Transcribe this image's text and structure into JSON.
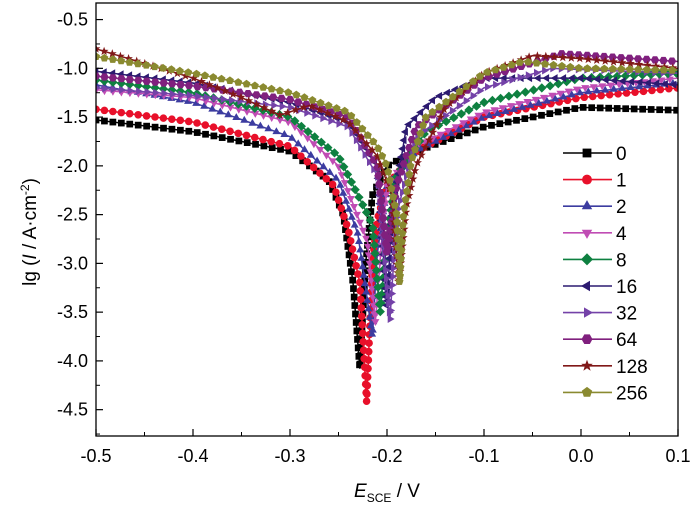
{
  "chart_data": {
    "type": "line",
    "title": "",
    "xlabel": {
      "main": "E",
      "sub": "SCE",
      "unit": " / V"
    },
    "ylabel": {
      "prefix": "lg (",
      "var": "I",
      "unit": " / A·cm",
      "sup": "-2",
      "suffix": ")"
    },
    "xlim": [
      -0.5,
      0.1
    ],
    "ylim": [
      -4.77,
      -0.33
    ],
    "xticks": [
      -0.5,
      -0.4,
      -0.3,
      -0.2,
      -0.1,
      0.0,
      0.1
    ],
    "xtick_labels": [
      "-0.5",
      "-0.4",
      "-0.3",
      "-0.2",
      "-0.1",
      "0.0",
      "0.1"
    ],
    "yticks": [
      -0.5,
      -1.0,
      -1.5,
      -2.0,
      -2.5,
      -3.0,
      -3.5,
      -4.0,
      -4.5
    ],
    "ytick_labels": [
      "-0.5",
      "-1.0",
      "-1.5",
      "-2.0",
      "-2.5",
      "-3.0",
      "-3.5",
      "-4.0",
      "-4.5"
    ],
    "grid": false,
    "legend_position": "right",
    "series": [
      {
        "name": "0",
        "color": "#000000",
        "marker": "square",
        "points": [
          [
            -0.5,
            -1.53
          ],
          [
            -0.4,
            -1.65
          ],
          [
            -0.3,
            -1.85
          ],
          [
            -0.26,
            -2.15
          ],
          [
            -0.245,
            -2.5
          ],
          [
            -0.235,
            -3.2
          ],
          [
            -0.228,
            -4.08
          ],
          [
            -0.222,
            -3.0
          ],
          [
            -0.215,
            -2.3
          ],
          [
            -0.2,
            -2.0
          ],
          [
            -0.17,
            -1.85
          ],
          [
            -0.1,
            -1.6
          ],
          [
            0.0,
            -1.4
          ],
          [
            0.1,
            -1.43
          ]
        ]
      },
      {
        "name": "1",
        "color": "#e8102a",
        "marker": "circle",
        "points": [
          [
            -0.5,
            -1.42
          ],
          [
            -0.4,
            -1.55
          ],
          [
            -0.3,
            -1.8
          ],
          [
            -0.255,
            -2.2
          ],
          [
            -0.24,
            -2.65
          ],
          [
            -0.228,
            -3.2
          ],
          [
            -0.221,
            -4.42
          ],
          [
            -0.215,
            -3.0
          ],
          [
            -0.21,
            -2.55
          ],
          [
            -0.2,
            -2.2
          ],
          [
            -0.17,
            -1.85
          ],
          [
            -0.1,
            -1.5
          ],
          [
            0.0,
            -1.3
          ],
          [
            0.1,
            -1.2
          ]
        ]
      },
      {
        "name": "2",
        "color": "#3c3ca0",
        "marker": "triangle-up",
        "points": [
          [
            -0.5,
            -1.17
          ],
          [
            -0.4,
            -1.35
          ],
          [
            -0.3,
            -1.7
          ],
          [
            -0.25,
            -2.15
          ],
          [
            -0.23,
            -2.7
          ],
          [
            -0.215,
            -3.75
          ],
          [
            -0.21,
            -2.9
          ],
          [
            -0.2,
            -2.2
          ],
          [
            -0.17,
            -1.85
          ],
          [
            -0.1,
            -1.5
          ],
          [
            0.0,
            -1.25
          ],
          [
            0.1,
            -1.15
          ]
        ]
      },
      {
        "name": "4",
        "color": "#c04cb4",
        "marker": "triangle-down",
        "points": [
          [
            -0.5,
            -1.22
          ],
          [
            -0.4,
            -1.3
          ],
          [
            -0.3,
            -1.55
          ],
          [
            -0.25,
            -2.0
          ],
          [
            -0.22,
            -2.78
          ],
          [
            -0.212,
            -3.6
          ],
          [
            -0.205,
            -2.7
          ],
          [
            -0.2,
            -2.2
          ],
          [
            -0.17,
            -1.8
          ],
          [
            -0.1,
            -1.45
          ],
          [
            0.0,
            -1.2
          ],
          [
            0.1,
            -1.1
          ]
        ]
      },
      {
        "name": "8",
        "color": "#0e8040",
        "marker": "diamond",
        "points": [
          [
            -0.5,
            -1.12
          ],
          [
            -0.4,
            -1.25
          ],
          [
            -0.3,
            -1.5
          ],
          [
            -0.25,
            -1.9
          ],
          [
            -0.215,
            -2.6
          ],
          [
            -0.207,
            -3.5
          ],
          [
            -0.2,
            -2.7
          ],
          [
            -0.19,
            -2.1
          ],
          [
            -0.16,
            -1.65
          ],
          [
            -0.1,
            -1.35
          ],
          [
            0.0,
            -1.1
          ],
          [
            0.1,
            -1.05
          ]
        ]
      },
      {
        "name": "16",
        "color": "#2c1a70",
        "marker": "triangle-left",
        "points": [
          [
            -0.5,
            -1.03
          ],
          [
            -0.4,
            -1.15
          ],
          [
            -0.3,
            -1.35
          ],
          [
            -0.24,
            -1.55
          ],
          [
            -0.21,
            -2.0
          ],
          [
            -0.2,
            -3.45
          ],
          [
            -0.195,
            -2.5
          ],
          [
            -0.18,
            -1.6
          ],
          [
            -0.15,
            -1.3
          ],
          [
            -0.1,
            -1.1
          ],
          [
            0.0,
            -1.1
          ],
          [
            0.1,
            -1.17
          ]
        ]
      },
      {
        "name": "32",
        "color": "#7442a8",
        "marker": "triangle-right",
        "points": [
          [
            -0.5,
            -1.2
          ],
          [
            -0.4,
            -1.28
          ],
          [
            -0.3,
            -1.4
          ],
          [
            -0.24,
            -1.6
          ],
          [
            -0.21,
            -2.1
          ],
          [
            -0.197,
            -3.58
          ],
          [
            -0.19,
            -2.5
          ],
          [
            -0.17,
            -1.7
          ],
          [
            -0.1,
            -1.2
          ],
          [
            -0.03,
            -1.0
          ],
          [
            0.1,
            -1.05
          ]
        ]
      },
      {
        "name": "64",
        "color": "#80207e",
        "marker": "hexagon",
        "points": [
          [
            -0.5,
            -1.08
          ],
          [
            -0.4,
            -1.18
          ],
          [
            -0.3,
            -1.32
          ],
          [
            -0.24,
            -1.5
          ],
          [
            -0.21,
            -2.0
          ],
          [
            -0.2,
            -2.9
          ],
          [
            -0.19,
            -2.2
          ],
          [
            -0.17,
            -1.6
          ],
          [
            -0.1,
            -1.1
          ],
          [
            -0.02,
            -0.85
          ],
          [
            0.1,
            -0.93
          ]
        ]
      },
      {
        "name": "128",
        "color": "#801818",
        "marker": "star",
        "points": [
          [
            -0.5,
            -0.8
          ],
          [
            -0.4,
            -1.1
          ],
          [
            -0.35,
            -1.3
          ],
          [
            -0.31,
            -1.48
          ],
          [
            -0.28,
            -1.38
          ],
          [
            -0.24,
            -1.55
          ],
          [
            -0.21,
            -1.9
          ],
          [
            -0.195,
            -2.3
          ],
          [
            -0.188,
            -3.22
          ],
          [
            -0.18,
            -2.42
          ],
          [
            -0.17,
            -2.0
          ],
          [
            -0.14,
            -1.4
          ],
          [
            -0.1,
            -1.05
          ],
          [
            -0.05,
            -0.87
          ],
          [
            0.0,
            -0.9
          ],
          [
            0.1,
            -1.0
          ]
        ]
      },
      {
        "name": "256",
        "color": "#8a8a30",
        "marker": "pentagon",
        "points": [
          [
            -0.5,
            -0.88
          ],
          [
            -0.4,
            -1.05
          ],
          [
            -0.3,
            -1.25
          ],
          [
            -0.24,
            -1.45
          ],
          [
            -0.21,
            -1.8
          ],
          [
            -0.2,
            -2.0
          ],
          [
            -0.19,
            -2.5
          ],
          [
            -0.187,
            -3.2
          ],
          [
            -0.183,
            -2.5
          ],
          [
            -0.175,
            -1.95
          ],
          [
            -0.16,
            -1.5
          ],
          [
            -0.1,
            -1.05
          ],
          [
            -0.06,
            -0.93
          ],
          [
            0.0,
            -1.0
          ],
          [
            0.1,
            -1.02
          ]
        ]
      }
    ]
  }
}
